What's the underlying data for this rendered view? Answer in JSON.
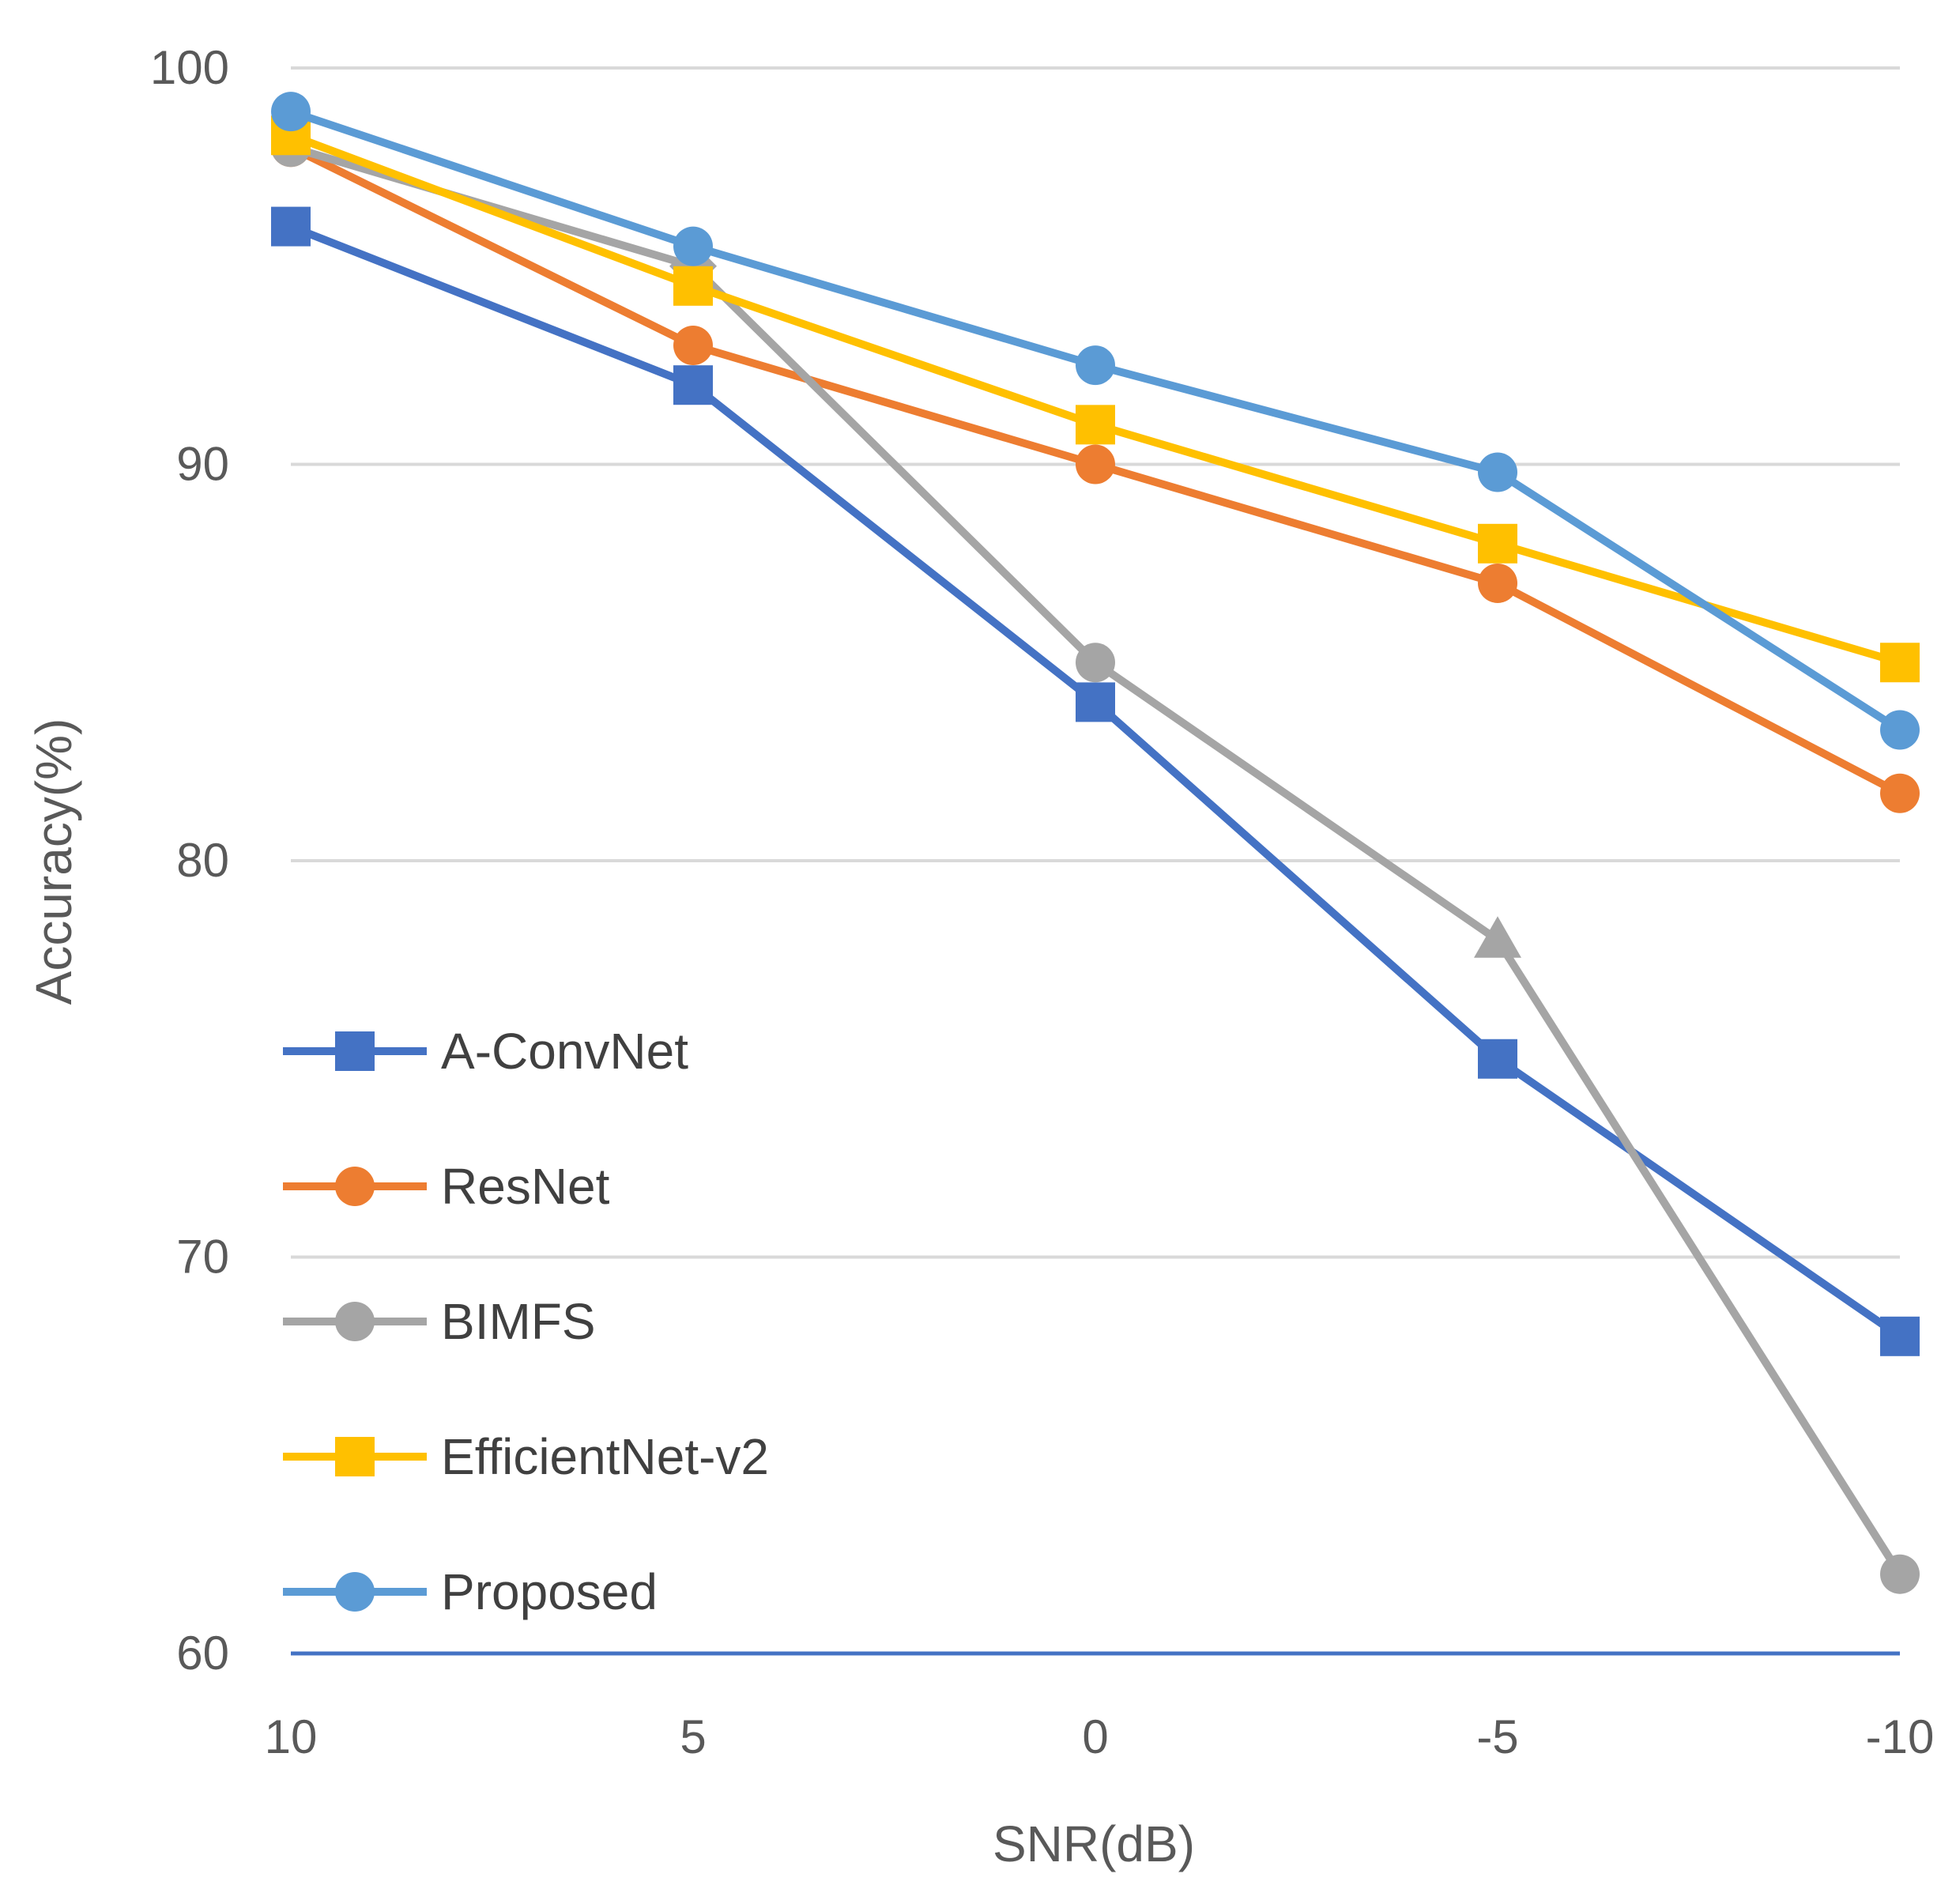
{
  "chart_data": {
    "type": "line",
    "title": "",
    "xlabel": "SNR(dB)",
    "ylabel": "Accuracy(%)",
    "categories": [
      "10",
      "5",
      "0",
      "-5",
      "-10"
    ],
    "yticks": [
      "60",
      "70",
      "80",
      "90",
      "100"
    ],
    "ylim": [
      60,
      100
    ],
    "grid": true,
    "legend_position": "left",
    "series": [
      {
        "name": "A-ConvNet",
        "color": "#4472C4",
        "marker": "square",
        "values": [
          96,
          92,
          84,
          75,
          68
        ]
      },
      {
        "name": "ResNet",
        "color": "#ED7D31",
        "marker": "circle",
        "values": [
          98,
          93,
          90,
          87,
          81.7
        ]
      },
      {
        "name": "BIMFS",
        "color": "#A5A5A5",
        "marker": "circle",
        "point_markers": [
          "circle",
          "diamond",
          "circle",
          "triangle",
          "circle"
        ],
        "values": [
          98,
          95,
          85,
          78,
          62
        ]
      },
      {
        "name": "EfficientNet-v2",
        "color": "#FFC000",
        "marker": "square",
        "values": [
          98.3,
          94.5,
          91,
          88,
          85
        ]
      },
      {
        "name": "Proposed",
        "color": "#5B9BD5",
        "marker": "circle",
        "values": [
          98.9,
          95.5,
          92.5,
          89.8,
          83.3
        ]
      }
    ]
  }
}
